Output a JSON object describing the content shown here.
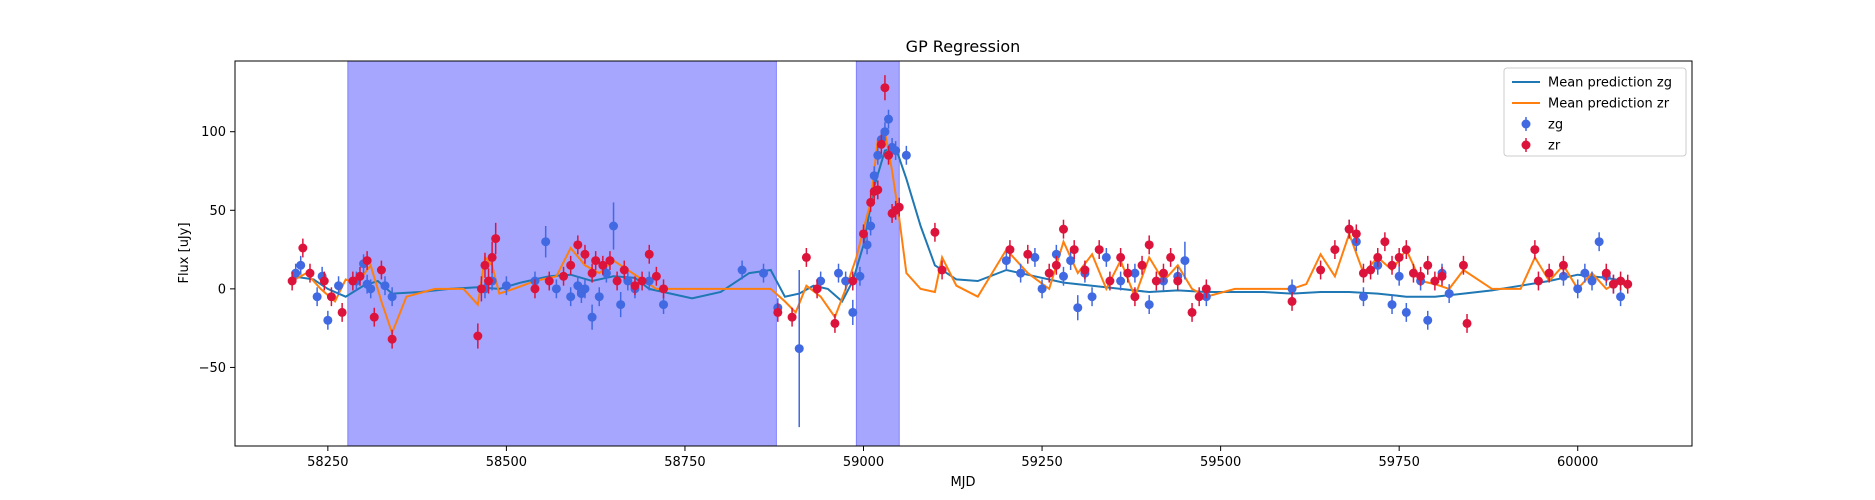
{
  "chart_data": {
    "type": "scatter",
    "title": "GP Regression",
    "xlabel": "MJD",
    "ylabel": "Flux [uJy]",
    "xlim": [
      58120,
      60160
    ],
    "ylim": [
      -100,
      145
    ],
    "xticks": [
      58250,
      58500,
      58750,
      59000,
      59250,
      59500,
      59750,
      60000
    ],
    "yticks": [
      -50,
      0,
      50,
      100
    ],
    "grid": false,
    "legend_position": "top-right",
    "shaded_regions": [
      {
        "x0": 58278,
        "x1": 58878,
        "color": "#a6a6ff"
      },
      {
        "x0": 58990,
        "x1": 59050,
        "color": "#a6a6ff"
      }
    ],
    "series": [
      {
        "name": "Mean prediction zg",
        "kind": "line",
        "color": "#1f77b4",
        "x": [
          58200,
          58230,
          58250,
          58275,
          58300,
          58320,
          58340,
          58380,
          58420,
          58460,
          58490,
          58520,
          58560,
          58590,
          58620,
          58650,
          58680,
          58700,
          58730,
          58760,
          58800,
          58840,
          58870,
          58890,
          58910,
          58930,
          58950,
          58970,
          58985,
          59000,
          59015,
          59030,
          59045,
          59060,
          59080,
          59100,
          59130,
          59160,
          59200,
          59240,
          59280,
          59320,
          59360,
          59400,
          59440,
          59480,
          59520,
          59560,
          59600,
          59640,
          59680,
          59720,
          59760,
          59800,
          59840,
          59880,
          59920,
          59960,
          60000,
          60040,
          60065
        ],
        "y": [
          8,
          6,
          0,
          -5,
          2,
          5,
          -3,
          -2,
          0,
          1,
          0,
          4,
          8,
          9,
          5,
          8,
          7,
          0,
          -3,
          -6,
          -2,
          10,
          12,
          -5,
          -3,
          2,
          0,
          -8,
          5,
          28,
          65,
          88,
          90,
          70,
          40,
          15,
          6,
          5,
          12,
          8,
          4,
          2,
          0,
          -2,
          -1,
          -2,
          -2,
          -2,
          -3,
          -2,
          -2,
          -3,
          -5,
          -5,
          -3,
          -1,
          2,
          5,
          9,
          7,
          5
        ]
      },
      {
        "name": "Mean prediction zr",
        "kind": "line",
        "color": "#ff7f0e",
        "x": [
          58200,
          58220,
          58240,
          58260,
          58275,
          58290,
          58310,
          58325,
          58340,
          58360,
          58400,
          58440,
          58460,
          58470,
          58480,
          58490,
          58510,
          58540,
          58570,
          58590,
          58610,
          58630,
          58650,
          58670,
          58690,
          58710,
          58730,
          58760,
          58800,
          58840,
          58870,
          58890,
          58905,
          58920,
          58940,
          58960,
          58975,
          58990,
          59000,
          59010,
          59020,
          59030,
          59040,
          59050,
          59060,
          59080,
          59100,
          59110,
          59130,
          59160,
          59200,
          59230,
          59260,
          59280,
          59300,
          59320,
          59340,
          59360,
          59380,
          59400,
          59420,
          59440,
          59460,
          59480,
          59520,
          59560,
          59600,
          59620,
          59640,
          59660,
          59680,
          59700,
          59720,
          59740,
          59760,
          59780,
          59800,
          59820,
          59840,
          59880,
          59920,
          59940,
          59960,
          59980,
          60000,
          60020,
          60040,
          60060,
          60070
        ],
        "y": [
          5,
          10,
          0,
          -8,
          6,
          3,
          15,
          -8,
          -28,
          -5,
          0,
          0,
          -10,
          20,
          15,
          -3,
          0,
          5,
          8,
          26,
          15,
          10,
          18,
          12,
          6,
          0,
          0,
          0,
          0,
          0,
          0,
          -8,
          -15,
          2,
          -5,
          -18,
          0,
          20,
          38,
          55,
          95,
          100,
          75,
          45,
          10,
          0,
          -2,
          20,
          2,
          -5,
          25,
          10,
          0,
          30,
          10,
          22,
          0,
          18,
          -5,
          20,
          5,
          15,
          0,
          -5,
          0,
          0,
          0,
          3,
          22,
          8,
          35,
          10,
          20,
          12,
          25,
          5,
          3,
          0,
          12,
          0,
          0,
          20,
          5,
          15,
          0,
          10,
          0,
          5,
          0
        ]
      },
      {
        "name": "zg",
        "kind": "errorbar",
        "color": "#4169e1",
        "x": [
          58205,
          58212,
          58235,
          58242,
          58250,
          58265,
          58290,
          58300,
          58305,
          58310,
          58330,
          58340,
          58470,
          58480,
          58500,
          58540,
          58555,
          58570,
          58590,
          58600,
          58605,
          58610,
          58620,
          58630,
          58640,
          58650,
          58660,
          58670,
          58680,
          58700,
          58720,
          58830,
          58860,
          58880,
          58910,
          58940,
          58965,
          58975,
          58985,
          58995,
          59005,
          59010,
          59015,
          59020,
          59025,
          59030,
          59035,
          59040,
          59045,
          59060,
          59200,
          59220,
          59240,
          59250,
          59270,
          59280,
          59290,
          59300,
          59310,
          59320,
          59340,
          59360,
          59380,
          59400,
          59420,
          59440,
          59450,
          59480,
          59600,
          59680,
          59690,
          59700,
          59720,
          59740,
          59750,
          59760,
          59780,
          59790,
          59810,
          59820,
          59980,
          60000,
          60010,
          60020,
          60030,
          60040,
          60050,
          60060
        ],
        "y": [
          10,
          15,
          -5,
          8,
          -20,
          2,
          5,
          16,
          3,
          0,
          2,
          -5,
          0,
          5,
          2,
          5,
          30,
          0,
          -5,
          2,
          -3,
          0,
          -18,
          -5,
          10,
          40,
          -10,
          5,
          0,
          5,
          -10,
          12,
          10,
          -12,
          -38,
          5,
          10,
          5,
          -15,
          8,
          28,
          40,
          72,
          85,
          95,
          100,
          108,
          90,
          88,
          85,
          18,
          10,
          20,
          0,
          22,
          8,
          18,
          -12,
          10,
          -5,
          20,
          5,
          10,
          -10,
          5,
          8,
          18,
          -5,
          0,
          38,
          30,
          -5,
          15,
          -10,
          8,
          -15,
          5,
          -20,
          10,
          -3,
          8,
          0,
          10,
          5,
          30,
          8,
          3,
          -5
        ],
        "err": [
          6,
          6,
          6,
          6,
          6,
          6,
          6,
          6,
          6,
          6,
          6,
          6,
          6,
          6,
          6,
          6,
          10,
          6,
          6,
          6,
          6,
          6,
          8,
          6,
          6,
          15,
          8,
          6,
          6,
          6,
          6,
          6,
          6,
          6,
          50,
          6,
          6,
          6,
          8,
          6,
          6,
          6,
          6,
          6,
          6,
          6,
          6,
          6,
          6,
          6,
          6,
          6,
          6,
          6,
          6,
          6,
          6,
          8,
          6,
          6,
          6,
          6,
          6,
          6,
          6,
          6,
          12,
          6,
          6,
          6,
          6,
          6,
          6,
          6,
          6,
          6,
          6,
          6,
          6,
          6,
          6,
          6,
          6,
          6,
          6,
          6,
          6,
          6
        ]
      },
      {
        "name": "zr",
        "kind": "errorbar",
        "color": "#dc143c",
        "x": [
          58200,
          58215,
          58225,
          58245,
          58255,
          58270,
          58285,
          58295,
          58305,
          58315,
          58325,
          58340,
          58460,
          58465,
          58470,
          58475,
          58480,
          58485,
          58540,
          58560,
          58580,
          58590,
          58600,
          58610,
          58620,
          58625,
          58635,
          58645,
          58655,
          58665,
          58680,
          58690,
          58700,
          58710,
          58720,
          58880,
          58900,
          58920,
          58935,
          58960,
          58985,
          59000,
          59010,
          59015,
          59020,
          59025,
          59030,
          59035,
          59040,
          59045,
          59050,
          59100,
          59110,
          59205,
          59230,
          59260,
          59270,
          59280,
          59295,
          59310,
          59330,
          59345,
          59360,
          59370,
          59380,
          59390,
          59400,
          59410,
          59420,
          59430,
          59440,
          59460,
          59470,
          59480,
          59600,
          59640,
          59660,
          59680,
          59690,
          59700,
          59710,
          59720,
          59730,
          59740,
          59750,
          59760,
          59770,
          59780,
          59790,
          59800,
          59810,
          59840,
          59845,
          59940,
          59945,
          59960,
          59980,
          60040,
          60050,
          60060,
          60070
        ],
        "y": [
          5,
          26,
          10,
          5,
          -5,
          -15,
          5,
          8,
          18,
          -18,
          12,
          -32,
          -30,
          0,
          15,
          5,
          20,
          32,
          0,
          5,
          8,
          15,
          28,
          22,
          10,
          18,
          15,
          18,
          5,
          12,
          2,
          5,
          22,
          8,
          0,
          -15,
          -18,
          20,
          0,
          -22,
          5,
          35,
          55,
          62,
          63,
          92,
          128,
          85,
          48,
          50,
          52,
          36,
          12,
          25,
          22,
          10,
          15,
          38,
          25,
          12,
          25,
          5,
          20,
          10,
          -5,
          15,
          28,
          5,
          10,
          20,
          5,
          -15,
          -5,
          0,
          -8,
          12,
          25,
          38,
          35,
          10,
          12,
          20,
          30,
          15,
          20,
          25,
          10,
          8,
          15,
          5,
          8,
          15,
          -22,
          25,
          5,
          10,
          15,
          10,
          3,
          5,
          3
        ],
        "err": [
          6,
          6,
          6,
          6,
          6,
          6,
          6,
          6,
          6,
          6,
          6,
          6,
          8,
          8,
          8,
          8,
          10,
          10,
          6,
          6,
          6,
          6,
          6,
          6,
          6,
          6,
          6,
          6,
          6,
          6,
          6,
          6,
          6,
          6,
          6,
          6,
          6,
          6,
          6,
          6,
          6,
          6,
          6,
          6,
          6,
          6,
          8,
          6,
          6,
          6,
          6,
          6,
          6,
          6,
          6,
          6,
          6,
          6,
          6,
          6,
          6,
          6,
          6,
          6,
          6,
          6,
          6,
          6,
          6,
          6,
          6,
          6,
          6,
          6,
          6,
          6,
          6,
          6,
          6,
          6,
          6,
          6,
          6,
          6,
          6,
          6,
          6,
          6,
          6,
          6,
          6,
          6,
          6,
          6,
          6,
          6,
          6,
          6,
          6,
          6,
          6
        ]
      }
    ]
  }
}
